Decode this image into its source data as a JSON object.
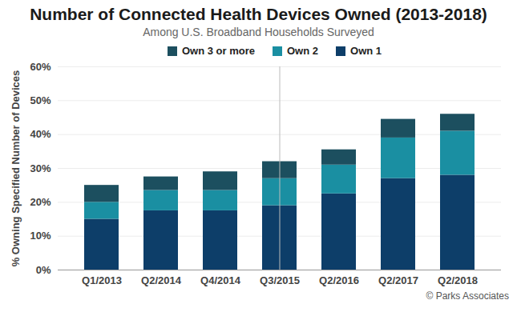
{
  "chart_data": {
    "type": "bar",
    "title": "Number of Connected Health Devices Owned (2013-2018)",
    "subtitle": "Among U.S. Broadband Households Surveyed",
    "y_label": "% Owning Specified Number of Devices",
    "caption": "© Parks Associates",
    "categories": [
      "Q1/2013",
      "Q2/2014",
      "Q4/2014",
      "Q3/2015",
      "Q2/2016",
      "Q2/2017",
      "Q2/2018"
    ],
    "series": [
      {
        "name": "Own 3 or more",
        "color": "#1c4f5f",
        "values": [
          5,
          4,
          5.5,
          5,
          4.5,
          5.5,
          5
        ]
      },
      {
        "name": "Own 2",
        "color": "#1a8fa2",
        "values": [
          5,
          6,
          6,
          8,
          8.5,
          12,
          13
        ]
      },
      {
        "name": "Own 1",
        "color": "#0d3e69",
        "values": [
          15,
          17.5,
          17.5,
          19,
          22.5,
          27,
          28
        ]
      }
    ],
    "stacked": true,
    "grid": true,
    "legend": "top",
    "ylim": [
      0,
      60
    ],
    "yticks": [
      {
        "value": 0,
        "label": "0%"
      },
      {
        "value": 10,
        "label": "10%"
      },
      {
        "value": 20,
        "label": "20%"
      },
      {
        "value": 30,
        "label": "30%"
      },
      {
        "value": 40,
        "label": "40%"
      },
      {
        "value": 50,
        "label": "50%"
      },
      {
        "value": 60,
        "label": "60%"
      }
    ]
  }
}
